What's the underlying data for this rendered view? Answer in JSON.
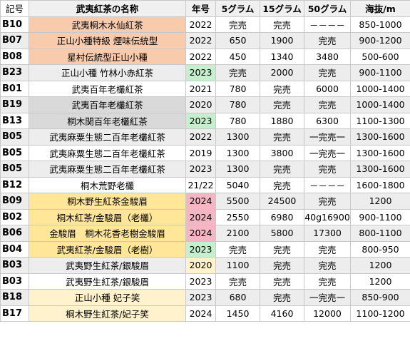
{
  "headers": [
    "記号",
    "武夷紅茶の名称",
    "年号",
    "5グラム",
    "15グラム",
    "50グラム",
    "海抜/m"
  ],
  "rows": [
    {
      "code": "B10",
      "name": "武夷桐木水仙紅茶",
      "year": "2022",
      "g5": "完売",
      "g15": "完売",
      "g50": "－－－－",
      "alt": "850-1000",
      "name_bg": "orange",
      "year_bg": "",
      "row_bg": ""
    },
    {
      "code": "B07",
      "name": "正山小種特級 煙味伝統型",
      "year": "2022",
      "g5": "650",
      "g15": "1900",
      "g50": "完売",
      "alt": "900-1200",
      "name_bg": "orange",
      "year_bg": "",
      "row_bg": "row"
    },
    {
      "code": "B08",
      "name": "星村伝統型正山小種",
      "year": "2022",
      "g5": "450",
      "g15": "1340",
      "g50": "3480",
      "alt": "500-600",
      "name_bg": "orange",
      "year_bg": "",
      "row_bg": ""
    },
    {
      "code": "B23",
      "name": "正山小種 竹林小赤紅茶",
      "year": "2023",
      "g5": "完売",
      "g15": "2000",
      "g50": "完売",
      "alt": "900-1100",
      "name_bg": "",
      "year_bg": "green",
      "row_bg": "row"
    },
    {
      "code": "B01",
      "name": "武夷百年老欉紅茶",
      "year": "2021",
      "g5": "780",
      "g15": "完売",
      "g50": "6000",
      "alt": "1000-1400",
      "name_bg": "",
      "year_bg": "",
      "row_bg": ""
    },
    {
      "code": "B19",
      "name": "武夷百年老欉紅茶",
      "year": "2020",
      "g5": "780",
      "g15": "完売",
      "g50": "完売",
      "alt": "1000-1400",
      "name_bg": "gray",
      "year_bg": "",
      "row_bg": "row"
    },
    {
      "code": "B13",
      "name": "桐木関百年老欉紅茶",
      "year": "2023",
      "g5": "780",
      "g15": "1880",
      "g50": "6300",
      "alt": "1100-1300",
      "name_bg": "gray",
      "year_bg": "green",
      "row_bg": ""
    },
    {
      "code": "B05",
      "name": "武夷麻粟生態二百年老欉紅茶",
      "year": "2022",
      "g5": "1300",
      "g15": "完売",
      "g50": "一完売一",
      "alt": "1300-1600",
      "name_bg": "",
      "year_bg": "",
      "row_bg": "row"
    },
    {
      "code": "B05",
      "name": "武夷麻粟生態二百年老欉紅茶",
      "year": "2019",
      "g5": "1300",
      "g15": "3800",
      "g50": "一完売一",
      "alt": "1300-1600",
      "name_bg": "",
      "year_bg": "",
      "row_bg": ""
    },
    {
      "code": "B05",
      "name": "武夷麻粟生態二百年老欉紅茶",
      "year": "2023",
      "g5": "1300",
      "g15": "完売",
      "g50": "完売",
      "alt": "1300-1600",
      "name_bg": "",
      "year_bg": "",
      "row_bg": "row"
    },
    {
      "code": "B12",
      "name": "桐木荒野老欉",
      "year": "21/22",
      "g5": "5040",
      "g15": "完売",
      "g50": "－－－－",
      "alt": "1600-1800",
      "name_bg": "",
      "year_bg": "",
      "row_bg": ""
    },
    {
      "code": "B09",
      "name": "桐木野生紅茶金駿眉",
      "year": "2024",
      "g5": "5500",
      "g15": "24500",
      "g50": "完売",
      "alt": "1200",
      "name_bg": "yellow",
      "year_bg": "pink",
      "row_bg": "row"
    },
    {
      "code": "B02",
      "name": "桐木紅茶/金駿眉（老欉）",
      "year": "2024",
      "g5": "2550",
      "g15": "6980",
      "g50": "40g16900",
      "alt": "900-1100",
      "name_bg": "yellow",
      "year_bg": "pink",
      "row_bg": ""
    },
    {
      "code": "B06",
      "name": "金駿眉　桐木花香老樹金駿眉",
      "year": "2024",
      "g5": "2100",
      "g15": "5800",
      "g50": "17300",
      "alt": "800-1100",
      "name_bg": "yellow",
      "year_bg": "pink",
      "row_bg": "row"
    },
    {
      "code": "B04",
      "name": "武夷紅茶/金駿眉（老樹）",
      "year": "2023",
      "g5": "完売",
      "g15": "完売",
      "g50": "完売",
      "alt": "800-950",
      "name_bg": "yellow",
      "year_bg": "green",
      "row_bg": ""
    },
    {
      "code": "B03",
      "name": "武夷野生紅茶/銀駿眉",
      "year": "2020",
      "g5": "1100",
      "g15": "完売",
      "g50": "完売",
      "alt": "1200",
      "name_bg": "",
      "year_bg": "lyellow",
      "row_bg": "row"
    },
    {
      "code": "B03",
      "name": "武夷野生紅茶/銀駿眉",
      "year": "2023",
      "g5": "完売",
      "g15": "完売",
      "g50": "完売",
      "alt": "1200",
      "name_bg": "",
      "year_bg": "",
      "row_bg": ""
    },
    {
      "code": "B18",
      "name": "正山小種 妃子笑",
      "year": "2023",
      "g5": "680",
      "g15": "完売",
      "g50": "一完売一",
      "alt": "850-900",
      "name_bg": "lyellow",
      "year_bg": "",
      "row_bg": "row"
    },
    {
      "code": "B17",
      "name": "桐木野生紅茶/妃子笑",
      "year": "2024",
      "g5": "1450",
      "g15": "4160",
      "g50": "12000",
      "alt": "1100-1200",
      "name_bg": "lyellow",
      "year_bg": "",
      "row_bg": ""
    }
  ]
}
